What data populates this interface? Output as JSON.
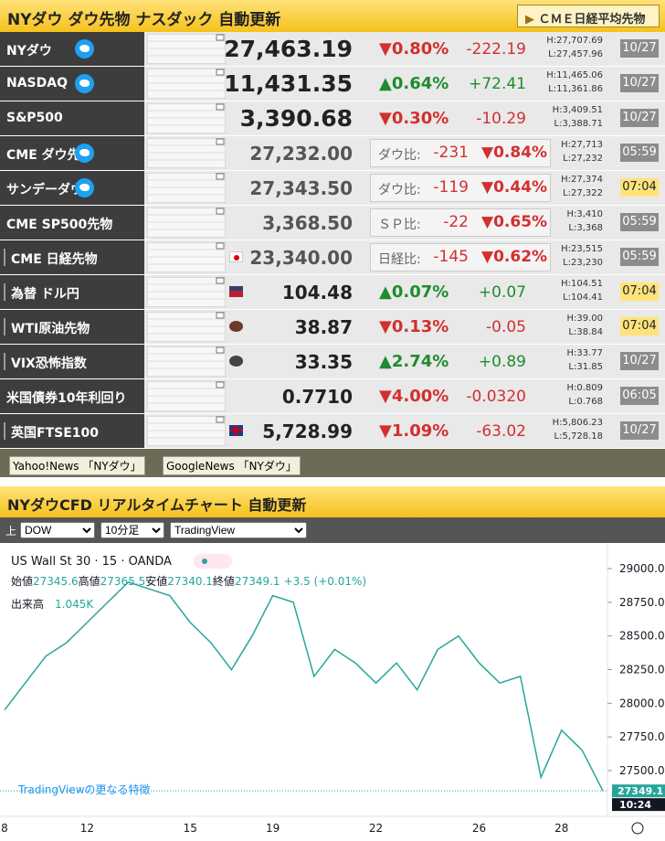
{
  "header": {
    "title": "NYダウ ダウ先物 ナスダック 自動更新",
    "button": "ＣＭＥ日経平均先物"
  },
  "rows": [
    {
      "name": "NYダウ",
      "twitter": true,
      "price": "27,463.19",
      "change_pct": "▼0.80%",
      "change": "-222.19",
      "high": "H:27,707.69",
      "low": "L:27,457.96",
      "time": "10/27"
    },
    {
      "name": "NASDAQ",
      "twitter": true,
      "price": "11,431.35",
      "change_pct": "▲0.64%",
      "change": "+72.41",
      "high": "H:11,465.06",
      "low": "L:11,361.86",
      "time": "10/27"
    },
    {
      "name": "S&P500",
      "price": "3,390.68",
      "change_pct": "▼0.30%",
      "change": "-10.29",
      "high": "H:3,409.51",
      "low": "L:3,388.71",
      "time": "10/27"
    },
    {
      "name": "CME ダウ先物",
      "twitter": true,
      "price": "27,232.00",
      "compare_label": "ダウ比:",
      "change": "-231",
      "change_pct": "▼0.84%",
      "high": "H:27,713",
      "low": "L:27,232",
      "time": "05:59"
    },
    {
      "name": "サンデーダウ",
      "twitter": true,
      "price": "27,343.50",
      "compare_label": "ダウ比:",
      "change": "-119",
      "change_pct": "▼0.44%",
      "high": "H:27,374",
      "low": "L:27,322",
      "time": "07:04",
      "highlight": true
    },
    {
      "name": "CME SP500先物",
      "price": "3,368.50",
      "compare_label": "ＳＰ比:",
      "change": "-22",
      "change_pct": "▼0.65%",
      "high": "H:3,410",
      "low": "L:3,368",
      "time": "05:59"
    },
    {
      "name": "CME 日経先物",
      "icon": "jp",
      "price": "23,340.00",
      "compare_label": "日経比:",
      "change": "-145",
      "change_pct": "▼0.62%",
      "high": "H:23,515",
      "low": "L:23,230",
      "time": "05:59"
    },
    {
      "name": "為替 ドル円",
      "icon": "us",
      "price": "104.48",
      "change_pct": "▲0.07%",
      "change": "+0.07",
      "high": "H:104.51",
      "low": "L:104.41",
      "time": "07:04",
      "highlight": true
    },
    {
      "name": "WTI原油先物",
      "icon": "oil",
      "price": "38.87",
      "change_pct": "▼0.13%",
      "change": "-0.05",
      "high": "H:39.00",
      "low": "L:38.84",
      "time": "07:04",
      "highlight": true
    },
    {
      "name": "VIX恐怖指数",
      "icon": "vix",
      "price": "33.35",
      "change_pct": "▲2.74%",
      "change": "+0.89",
      "high": "H:33.77",
      "low": "L:31.85",
      "time": "10/27"
    },
    {
      "name": "米国債券10年利回り",
      "price": "0.7710",
      "change_pct": "▼4.00%",
      "change": "-0.0320",
      "high": "H:0.809",
      "low": "L:0.768",
      "time": "06:05"
    },
    {
      "name": "英国FTSE100",
      "icon": "uk",
      "price": "5,728.99",
      "change_pct": "▼1.09%",
      "change": "-63.02",
      "high": "H:5,806.23",
      "low": "L:5,728.18",
      "time": "10/27"
    }
  ],
  "links": [
    "Yahoo!News 「NYダウ」",
    "GoogleNews 「NYダウ」"
  ],
  "chart_header": {
    "title": "NYダウCFD リアルタイムチャート 自動更新"
  },
  "controls": {
    "label": "上",
    "selects": [
      "DOW",
      "10分足",
      "TradingView"
    ]
  },
  "chart_data": {
    "type": "line",
    "title": "US Wall St 30 · 15 · OANDA",
    "ohlc": [
      {
        "label": "始値",
        "value": "27345.6"
      },
      {
        "label": "高値",
        "value": "27365.5"
      },
      {
        "label": "安値",
        "value": "27340.1"
      },
      {
        "label": "終値",
        "value": "27349.1"
      }
    ],
    "ohlc_change": "+3.5 (+0.01%)",
    "volume_label": "出来高",
    "volume": "1.045K",
    "promo": "TradingViewの更なる特徴",
    "color": "#26a69a",
    "categories": [
      "8",
      null,
      null,
      null,
      "12",
      null,
      null,
      null,
      null,
      "15",
      null,
      null,
      null,
      "19",
      null,
      null,
      null,
      null,
      "22",
      null,
      null,
      null,
      null,
      "26",
      null,
      null,
      null,
      "28",
      null,
      null
    ],
    "values": [
      27950,
      28150,
      28350,
      28450,
      28600,
      28750,
      28900,
      28850,
      28800,
      28600,
      28450,
      28250,
      28500,
      28800,
      28750,
      28200,
      28400,
      28300,
      28150,
      28300,
      28100,
      28400,
      28500,
      28300,
      28150,
      28200,
      27450,
      27800,
      27650,
      27349.1
    ],
    "last_label": "27349.1",
    "time": "10:24",
    "ylim": [
      27160,
      29150
    ],
    "yticks": [
      {
        "value": 29000,
        "label": "29000.0"
      },
      {
        "value": 28750,
        "label": "28750.0"
      },
      {
        "value": 28500,
        "label": "28500.0"
      },
      {
        "value": 28250,
        "label": "28250.0"
      },
      {
        "value": 28000,
        "label": "28000.0"
      },
      {
        "value": 27750,
        "label": "27750.0"
      },
      {
        "value": 27500,
        "label": "27500.0"
      }
    ]
  }
}
